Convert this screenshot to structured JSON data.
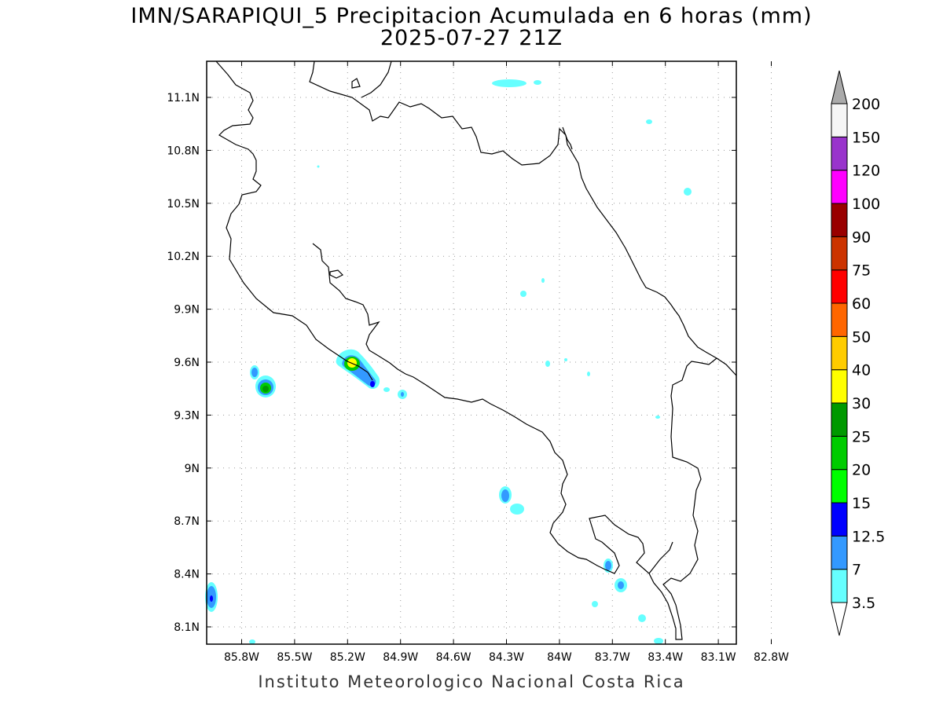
{
  "title": "IMN/SARAPIQUI_5 Precipitacion Acumulada en 6 horas (mm)",
  "subtitle": "2025-07-27 21Z",
  "footer": "Instituto Meteorologico Nacional Costa Rica",
  "map": {
    "lon_range": [
      -86.0,
      -82.6
    ],
    "lat_range": [
      8.0,
      11.3
    ],
    "x_ticks": [
      "85.8W",
      "85.5W",
      "85.2W",
      "84.9W",
      "84.6W",
      "84.3W",
      "84W",
      "83.7W",
      "83.4W",
      "83.1W",
      "82.8W"
    ],
    "y_ticks": [
      "11.1N",
      "10.8N",
      "10.5N",
      "10.2N",
      "9.9N",
      "9.6N",
      "9.3N",
      "9N",
      "8.7N",
      "8.4N",
      "8.1N"
    ],
    "grid": true
  },
  "colorbar": {
    "levels": [
      "3.5",
      "7",
      "12.5",
      "15",
      "20",
      "25",
      "30",
      "40",
      "50",
      "60",
      "75",
      "90",
      "100",
      "120",
      "150",
      "200"
    ],
    "colors": [
      "#66ffff",
      "#3399ff",
      "#0000ff",
      "#00ff00",
      "#00cc00",
      "#009900",
      "#ffff00",
      "#ffcc00",
      "#ff6600",
      "#ff0000",
      "#cc3300",
      "#990000",
      "#ff00ff",
      "#9933cc",
      "#f5f5f5"
    ],
    "over_color": "#aaaaaa",
    "under_color": "#ffffff"
  }
}
